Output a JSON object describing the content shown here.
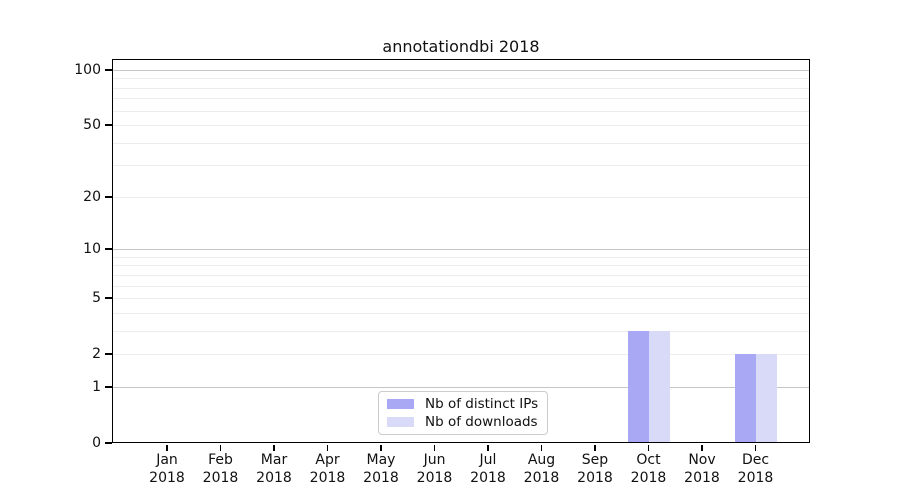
{
  "figure": {
    "title": "annotationdbi 2018"
  },
  "legend": {
    "items": [
      {
        "label": "Nb of distinct IPs",
        "color": "#a8a8f4"
      },
      {
        "label": "Nb of downloads",
        "color": "#d9d9f8"
      }
    ]
  },
  "chart_data": {
    "type": "bar",
    "title": "annotationdbi 2018",
    "categories": [
      "Jan",
      "Feb",
      "Mar",
      "Apr",
      "May",
      "Jun",
      "Jul",
      "Aug",
      "Sep",
      "Oct",
      "Nov",
      "Dec"
    ],
    "x_year_label": "2018",
    "series": [
      {
        "name": "Nb of distinct IPs",
        "color": "#a8a8f4",
        "values": [
          0,
          0,
          0,
          0,
          0,
          0,
          0,
          0,
          0,
          3,
          0,
          2
        ]
      },
      {
        "name": "Nb of downloads",
        "color": "#d9d9f8",
        "values": [
          0,
          0,
          0,
          0,
          0,
          0,
          0,
          0,
          0,
          3,
          0,
          2
        ]
      }
    ],
    "xlabel": "",
    "ylabel": "",
    "y_scale": "log1p",
    "ylim": [
      0,
      110
    ],
    "y_ticks": [
      0,
      1,
      2,
      5,
      10,
      20,
      50,
      100
    ],
    "y_tick_labels": [
      "0",
      "1",
      "2",
      "5",
      "10",
      "20",
      "50",
      "100"
    ],
    "grid": {
      "on": true,
      "major_values": [
        1,
        10,
        100
      ],
      "minor_values": [
        2,
        3,
        4,
        5,
        6,
        7,
        8,
        9,
        20,
        30,
        40,
        50,
        60,
        70,
        80,
        90
      ],
      "major_color": "#c6c6c6",
      "minor_color": "#ededed"
    },
    "legend_position": "inside-bottom-center",
    "text_color": "#111111",
    "background_color": "#ffffff"
  }
}
